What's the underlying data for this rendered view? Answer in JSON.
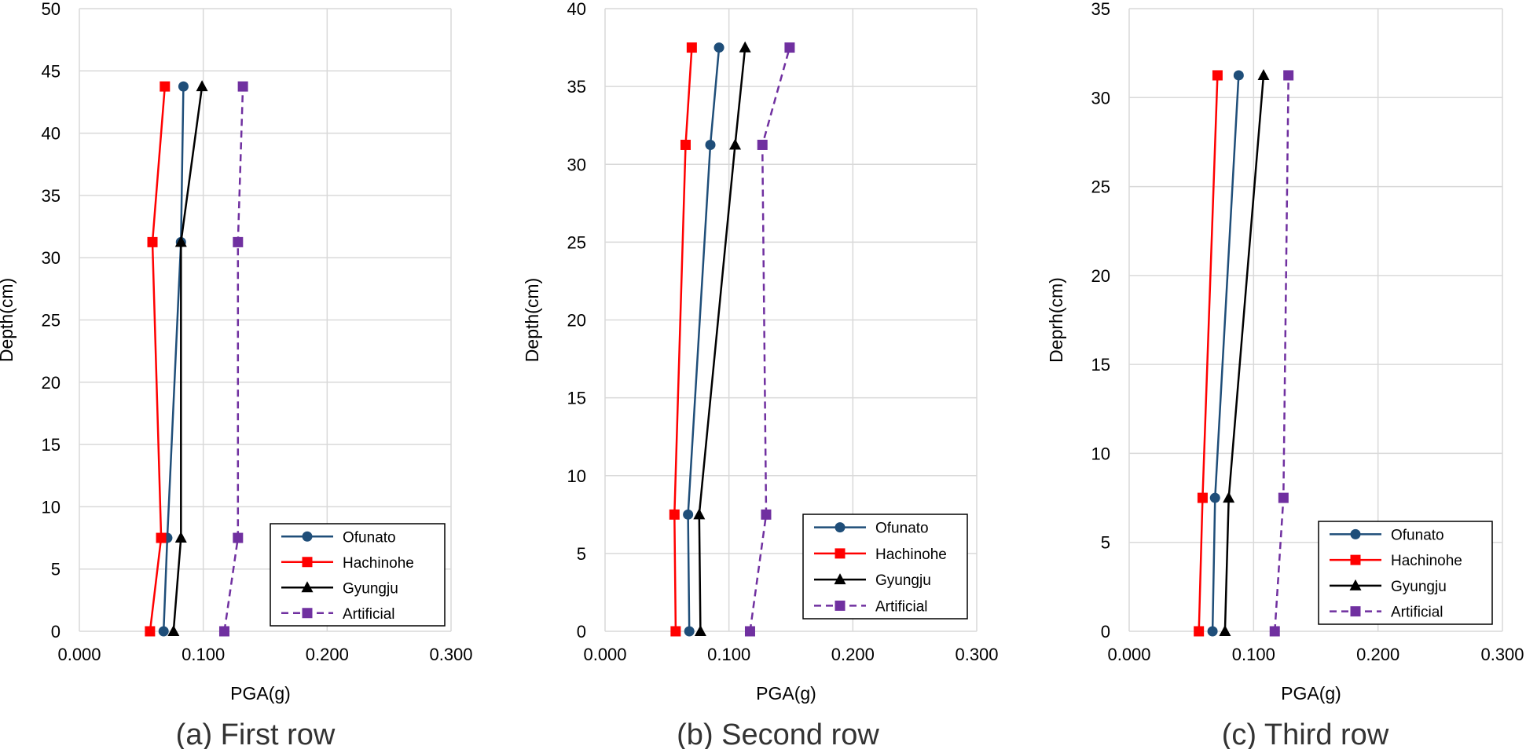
{
  "chart_data": [
    {
      "type": "line",
      "caption": "(a) First row",
      "xlabel": "PGA(g)",
      "ylabel": "Depth(cm)",
      "xlim": [
        0,
        0.3
      ],
      "ylim": [
        0,
        50
      ],
      "xticks": [
        "0.000",
        "0.100",
        "0.200",
        "0.300"
      ],
      "yticks": [
        "0",
        "5",
        "10",
        "15",
        "20",
        "25",
        "30",
        "35",
        "40",
        "45",
        "50"
      ],
      "grid": true,
      "legend_position": "bottom-right",
      "series": [
        {
          "name": "Ofunato",
          "color": "#1f4e79",
          "marker": "circle",
          "dash": "solid",
          "points": [
            [
              0.068,
              0
            ],
            [
              0.071,
              7.5
            ],
            [
              0.082,
              31.25
            ],
            [
              0.084,
              43.75
            ]
          ]
        },
        {
          "name": "Hachinohe",
          "color": "#ff0000",
          "marker": "square",
          "dash": "solid",
          "points": [
            [
              0.057,
              0
            ],
            [
              0.066,
              7.5
            ],
            [
              0.059,
              31.25
            ],
            [
              0.069,
              43.75
            ]
          ]
        },
        {
          "name": "Gyungju",
          "color": "#000000",
          "marker": "triangle",
          "dash": "solid",
          "points": [
            [
              0.076,
              0
            ],
            [
              0.082,
              7.5
            ],
            [
              0.082,
              31.25
            ],
            [
              0.099,
              43.75
            ]
          ]
        },
        {
          "name": "Artificial",
          "color": "#7030a0",
          "marker": "square",
          "dash": "dashed",
          "points": [
            [
              0.117,
              0
            ],
            [
              0.128,
              7.5
            ],
            [
              0.128,
              31.25
            ],
            [
              0.132,
              43.75
            ]
          ]
        }
      ]
    },
    {
      "type": "line",
      "caption": "(b) Second row",
      "xlabel": "PGA(g)",
      "ylabel": "Depth(cm)",
      "xlim": [
        0,
        0.3
      ],
      "ylim": [
        0,
        40
      ],
      "xticks": [
        "0.000",
        "0.100",
        "0.200",
        "0.300"
      ],
      "yticks": [
        "0",
        "5",
        "10",
        "15",
        "20",
        "25",
        "30",
        "35",
        "40"
      ],
      "grid": true,
      "legend_position": "bottom-right",
      "series": [
        {
          "name": "Ofunato",
          "color": "#1f4e79",
          "marker": "circle",
          "dash": "solid",
          "points": [
            [
              0.068,
              0
            ],
            [
              0.067,
              7.5
            ],
            [
              0.085,
              31.25
            ],
            [
              0.092,
              37.5
            ]
          ]
        },
        {
          "name": "Hachinohe",
          "color": "#ff0000",
          "marker": "square",
          "dash": "solid",
          "points": [
            [
              0.057,
              0
            ],
            [
              0.056,
              7.5
            ],
            [
              0.065,
              31.25
            ],
            [
              0.07,
              37.5
            ]
          ]
        },
        {
          "name": "Gyungju",
          "color": "#000000",
          "marker": "triangle",
          "dash": "solid",
          "points": [
            [
              0.077,
              0
            ],
            [
              0.076,
              7.5
            ],
            [
              0.105,
              31.25
            ],
            [
              0.113,
              37.5
            ]
          ]
        },
        {
          "name": "Artificial",
          "color": "#7030a0",
          "marker": "square",
          "dash": "dashed",
          "points": [
            [
              0.117,
              0
            ],
            [
              0.13,
              7.5
            ],
            [
              0.127,
              31.25
            ],
            [
              0.149,
              37.5
            ]
          ]
        }
      ]
    },
    {
      "type": "line",
      "caption": "(c) Third row",
      "xlabel": "PGA(g)",
      "ylabel": "Deprh(cm)",
      "xlim": [
        0,
        0.3
      ],
      "ylim": [
        0,
        35
      ],
      "xticks": [
        "0.000",
        "0.100",
        "0.200",
        "0.300"
      ],
      "yticks": [
        "0",
        "5",
        "10",
        "15",
        "20",
        "25",
        "30",
        "35"
      ],
      "grid": true,
      "legend_position": "bottom-right",
      "series": [
        {
          "name": "Ofunato",
          "color": "#1f4e79",
          "marker": "circle",
          "dash": "solid",
          "points": [
            [
              0.067,
              0
            ],
            [
              0.069,
              7.5
            ],
            [
              0.088,
              31.25
            ]
          ]
        },
        {
          "name": "Hachinohe",
          "color": "#ff0000",
          "marker": "square",
          "dash": "solid",
          "points": [
            [
              0.056,
              0
            ],
            [
              0.059,
              7.5
            ],
            [
              0.071,
              31.25
            ]
          ]
        },
        {
          "name": "Gyungju",
          "color": "#000000",
          "marker": "triangle",
          "dash": "solid",
          "points": [
            [
              0.077,
              0
            ],
            [
              0.08,
              7.5
            ],
            [
              0.108,
              31.25
            ]
          ]
        },
        {
          "name": "Artificial",
          "color": "#7030a0",
          "marker": "square",
          "dash": "dashed",
          "points": [
            [
              0.117,
              0
            ],
            [
              0.124,
              7.5
            ],
            [
              0.128,
              31.25
            ]
          ]
        }
      ]
    }
  ]
}
